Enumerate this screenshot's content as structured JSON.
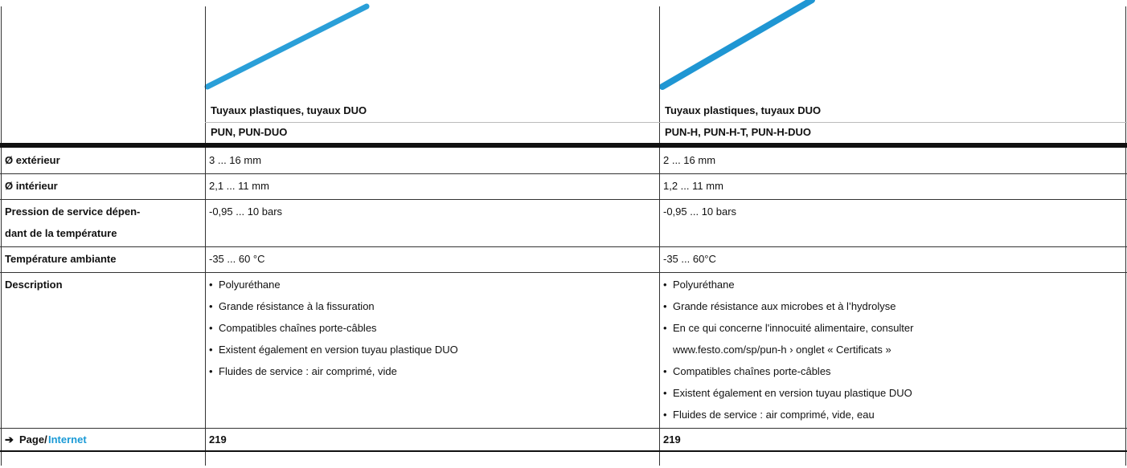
{
  "header": {
    "products": [
      {
        "name": "Tuyaux plastiques, tuyaux DUO",
        "code": "PUN, PUN-DUO"
      },
      {
        "name": "Tuyaux plastiques, tuyaux DUO",
        "code": "PUN-H, PUN-H-T, PUN-H-DUO"
      }
    ]
  },
  "table": {
    "rows": [
      {
        "label": [
          "Ø extérieur"
        ],
        "values": [
          [
            "3 ... 16 mm"
          ],
          [
            "2 ... 16 mm"
          ]
        ]
      },
      {
        "label": [
          "Ø intérieur"
        ],
        "values": [
          [
            "2,1 ... 11 mm"
          ],
          [
            "1,2 ... 11 mm"
          ]
        ]
      },
      {
        "label": [
          "Pression de service dépen-",
          "dant de la température"
        ],
        "values": [
          [
            "-0,95 ... 10 bars"
          ],
          [
            "-0,95 ... 10 bars"
          ]
        ]
      },
      {
        "label": [
          "Température ambiante"
        ],
        "values": [
          [
            "-35 ... 60 °C"
          ],
          [
            "-35 ... 60°C"
          ]
        ]
      },
      {
        "label": [
          "Description"
        ],
        "bullets": [
          [
            "Polyuréthane",
            "Grande résistance à la fissuration",
            "Compatibles chaînes porte-câbles",
            "Existent également en version tuyau plastique DUO",
            "Fluides de service : air comprimé, vide"
          ],
          [
            "Polyuréthane",
            "Grande résistance aux microbes et à l’hydrolyse",
            [
              "En ce qui concerne l'innocuité alimentaire, consulter",
              "www.festo.com/sp/pun-h › onglet « Certificats »"
            ],
            "Compatibles chaînes porte-câbles",
            "Existent également en version tuyau plastique DUO",
            "Fluides de service : air comprimé, vide, eau"
          ]
        ]
      }
    ],
    "footer": {
      "arrow": "➔",
      "page": "Page/",
      "internet": "Internet",
      "values": [
        "219",
        "219"
      ]
    }
  }
}
